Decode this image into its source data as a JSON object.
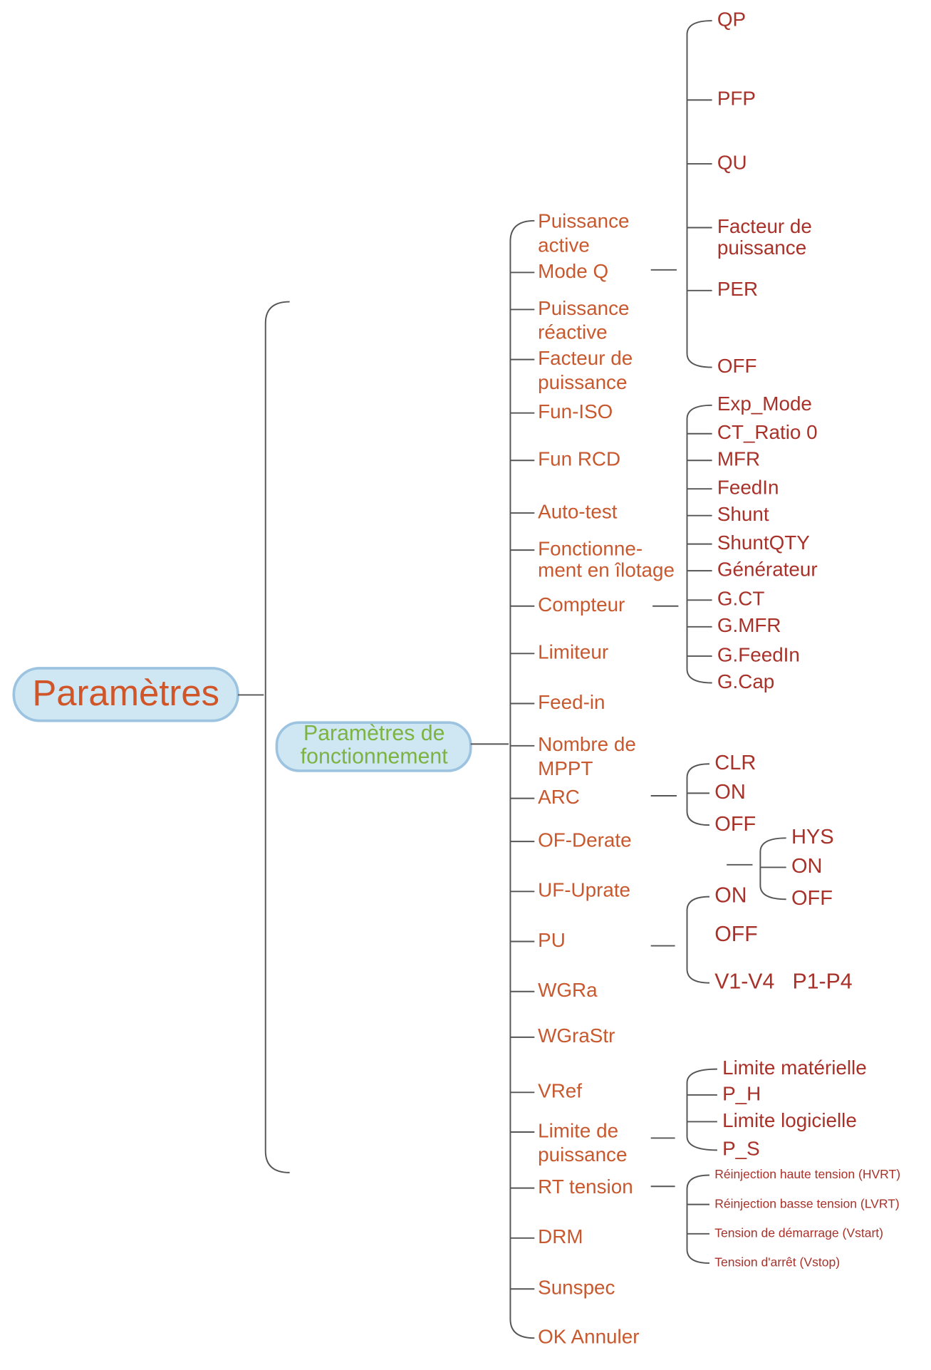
{
  "root": {
    "label": "Paramètres"
  },
  "branch": {
    "label": [
      "Paramètres de",
      "fonctionnement"
    ]
  },
  "items": [
    {
      "label": [
        "Puissance",
        "active"
      ]
    },
    {
      "label": [
        "Mode Q"
      ],
      "children": [
        {
          "label": [
            "QP"
          ]
        },
        {
          "label": [
            "PFP"
          ]
        },
        {
          "label": [
            "QU"
          ]
        },
        {
          "label": [
            "Facteur de",
            "puissance"
          ]
        },
        {
          "label": [
            "PER"
          ]
        },
        {
          "label": [
            "OFF"
          ]
        }
      ]
    },
    {
      "label": [
        "Puissance",
        "réactive"
      ]
    },
    {
      "label": [
        "Facteur de",
        "puissance"
      ]
    },
    {
      "label": [
        "Fun-ISO"
      ]
    },
    {
      "label": [
        "Fun RCD"
      ]
    },
    {
      "label": [
        "Auto-test"
      ]
    },
    {
      "label": [
        "Fonctionne-",
        "ment en îlotage"
      ]
    },
    {
      "label": [
        "Compteur"
      ],
      "children": [
        {
          "label": [
            "Exp_Mode"
          ]
        },
        {
          "label": [
            "CT_Ratio 0"
          ]
        },
        {
          "label": [
            "MFR"
          ]
        },
        {
          "label": [
            "FeedIn"
          ]
        },
        {
          "label": [
            "Shunt"
          ]
        },
        {
          "label": [
            "ShuntQTY"
          ]
        },
        {
          "label": [
            "Générateur"
          ]
        },
        {
          "label": [
            "G.CT"
          ]
        },
        {
          "label": [
            "G.MFR"
          ]
        },
        {
          "label": [
            "G.FeedIn"
          ]
        },
        {
          "label": [
            "G.Cap"
          ]
        }
      ]
    },
    {
      "label": [
        "Limiteur"
      ]
    },
    {
      "label": [
        "Feed-in"
      ]
    },
    {
      "label": [
        "Nombre de",
        "MPPT"
      ]
    },
    {
      "label": [
        "ARC"
      ],
      "children": [
        {
          "label": [
            "CLR"
          ]
        },
        {
          "label": [
            "ON"
          ]
        },
        {
          "label": [
            "OFF"
          ]
        }
      ]
    },
    {
      "label": [
        "OF-Derate"
      ],
      "children": [
        {
          "label": [
            "HYS"
          ]
        },
        {
          "label": [
            "ON"
          ]
        },
        {
          "label": [
            "OFF"
          ]
        }
      ]
    },
    {
      "label": [
        "UF-Uprate"
      ]
    },
    {
      "label": [
        "PU"
      ],
      "children": [
        {
          "label": [
            "ON"
          ]
        },
        {
          "label": [
            "OFF"
          ]
        },
        {
          "label": [
            "V1-V4   P1-P4"
          ]
        }
      ]
    },
    {
      "label": [
        "WGRa"
      ]
    },
    {
      "label": [
        "WGraStr"
      ]
    },
    {
      "label": [
        "VRef"
      ]
    },
    {
      "label": [
        "Limite de",
        "puissance"
      ],
      "children": [
        {
          "label": [
            "Limite matérielle"
          ]
        },
        {
          "label": [
            "P_H"
          ]
        },
        {
          "label": [
            "Limite logicielle"
          ]
        },
        {
          "label": [
            "P_S"
          ]
        }
      ]
    },
    {
      "label": [
        "RT tension"
      ],
      "children": [
        {
          "label": [
            "Réinjection haute tension (HVRT)"
          ]
        },
        {
          "label": [
            "Réinjection basse tension (LVRT)"
          ]
        },
        {
          "label": [
            "Tension de démarrage (Vstart)"
          ]
        },
        {
          "label": [
            "Tension d'arrêt (Vstop)"
          ]
        }
      ]
    },
    {
      "label": [
        "DRM"
      ]
    },
    {
      "label": [
        "Sunspec"
      ]
    },
    {
      "label": [
        "OK Annuler"
      ]
    }
  ]
}
